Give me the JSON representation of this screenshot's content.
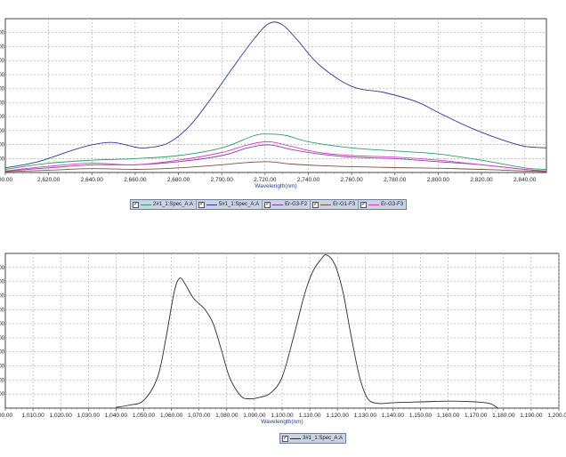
{
  "chart_data": [
    {
      "type": "line",
      "xlabel": "Wavelength(nm)",
      "ylabel": "",
      "xlim": [
        2600,
        2850
      ],
      "ylim": [
        0,
        100
      ],
      "grid": true,
      "legend_position": "bottom",
      "x_ticks": [
        "00.00",
        "2,620.00",
        "2,640.00",
        "2,660.00",
        "2,680.00",
        "2,700.00",
        "2,720.00",
        "2,740.00",
        "2,760.00",
        "2,780.00",
        "2,800.00",
        "2,820.00",
        "2,840.00"
      ],
      "x_tick_values": [
        2600,
        2620,
        2640,
        2660,
        2680,
        2700,
        2720,
        2740,
        2760,
        2780,
        2800,
        2820,
        2840
      ],
      "y_ticks": [
        ".00",
        ".00",
        ".00",
        ".00",
        ".00",
        ".00",
        ".00",
        ".00",
        ".00",
        ".00"
      ],
      "series": [
        {
          "name": "2#1_1:Spec_A:A",
          "color": "#2e9a6a",
          "x": [
            2600,
            2620,
            2640,
            2650,
            2660,
            2680,
            2700,
            2715,
            2722,
            2730,
            2740,
            2760,
            2780,
            2800,
            2820,
            2840,
            2850
          ],
          "y": [
            2,
            6,
            8,
            8.5,
            9,
            11,
            16,
            24,
            25,
            24,
            20,
            16,
            14,
            12,
            8,
            3,
            2
          ]
        },
        {
          "name": "5#1_1:Spec_A:A",
          "color": "#2c3a8c",
          "x": [
            2600,
            2615,
            2630,
            2640,
            2650,
            2660,
            2665,
            2675,
            2685,
            2695,
            2705,
            2715,
            2722,
            2728,
            2735,
            2745,
            2760,
            2775,
            2790,
            2800,
            2815,
            2830,
            2840,
            2850
          ],
          "y": [
            3,
            7,
            14,
            18,
            19.5,
            16.5,
            16,
            19,
            30,
            48,
            68,
            87,
            97,
            96,
            86,
            70,
            56,
            52,
            46,
            39,
            29,
            21,
            17,
            16
          ]
        },
        {
          "name": "Er-G3-F2",
          "color": "#8a3fa8",
          "x": [
            2600,
            2620,
            2640,
            2660,
            2680,
            2700,
            2712,
            2722,
            2732,
            2745,
            2760,
            2780,
            2800,
            2820,
            2840,
            2850
          ],
          "y": [
            1,
            3,
            5,
            5,
            7,
            11,
            16,
            18,
            15,
            12,
            10,
            9,
            7,
            5,
            2,
            1
          ]
        },
        {
          "name": "Er-G1-F3",
          "color": "#7a5040",
          "x": [
            2600,
            2620,
            2640,
            2660,
            2680,
            2700,
            2712,
            2722,
            2732,
            2745,
            2760,
            2780,
            2800,
            2820,
            2840,
            2850
          ],
          "y": [
            0.5,
            1.5,
            2.5,
            2,
            3,
            5,
            6.5,
            7,
            5.5,
            4.5,
            3.8,
            3.2,
            2.8,
            2,
            1,
            0.5
          ]
        },
        {
          "name": "Er-G3-F3",
          "color": "#d040c0",
          "x": [
            2600,
            2620,
            2640,
            2660,
            2680,
            2700,
            2712,
            2722,
            2732,
            2745,
            2760,
            2780,
            2800,
            2820,
            2840,
            2850
          ],
          "y": [
            1,
            4,
            6,
            5,
            8,
            13,
            18,
            20,
            17,
            13,
            11,
            10,
            8,
            5,
            2,
            1
          ]
        }
      ]
    },
    {
      "type": "line",
      "xlabel": "Wavelength(nm)",
      "ylabel": "",
      "xlim": [
        1000,
        1200
      ],
      "ylim": [
        0,
        100
      ],
      "grid": true,
      "legend_position": "bottom",
      "x_ticks": [
        "00.00",
        "1,010.00",
        "1,020.00",
        "1,030.00",
        "1,040.00",
        "1,050.00",
        "1,060.00",
        "1,070.00",
        "1,080.00",
        "1,090.00",
        "1,100.00",
        "1,110.00",
        "1,120.00",
        "1,130.00",
        "1,140.00",
        "1,150.00",
        "1,160.00",
        "1,170.00",
        "1,180.00",
        "1,190.00",
        "1,200.00"
      ],
      "x_tick_values": [
        1000,
        1010,
        1020,
        1030,
        1040,
        1050,
        1060,
        1070,
        1080,
        1090,
        1100,
        1110,
        1120,
        1130,
        1140,
        1150,
        1160,
        1170,
        1180,
        1190,
        1200
      ],
      "y_ticks": [
        ".00",
        ".00",
        ".00",
        ".00",
        ".00",
        ".00",
        ".00",
        ".00",
        ".00",
        ".00"
      ],
      "series": [
        {
          "name": "3#1_1:Spec_A:A",
          "color": "#2a2a2a",
          "x": [
            1040,
            1045,
            1050,
            1055,
            1058,
            1061,
            1063,
            1065,
            1068,
            1072,
            1075,
            1078,
            1081,
            1085,
            1088,
            1092,
            1096,
            1100,
            1104,
            1108,
            1111,
            1114,
            1116,
            1119,
            1122,
            1125,
            1128,
            1131,
            1135,
            1140,
            1150,
            1160,
            1170,
            1175,
            1178
          ],
          "y": [
            0.5,
            2,
            5,
            20,
            45,
            75,
            84,
            80,
            71,
            64,
            55,
            38,
            20,
            8,
            6,
            7,
            10,
            20,
            45,
            73,
            88,
            96,
            99,
            93,
            75,
            46,
            20,
            6,
            3,
            3.5,
            4,
            4.5,
            4,
            3,
            0
          ]
        }
      ]
    }
  ]
}
